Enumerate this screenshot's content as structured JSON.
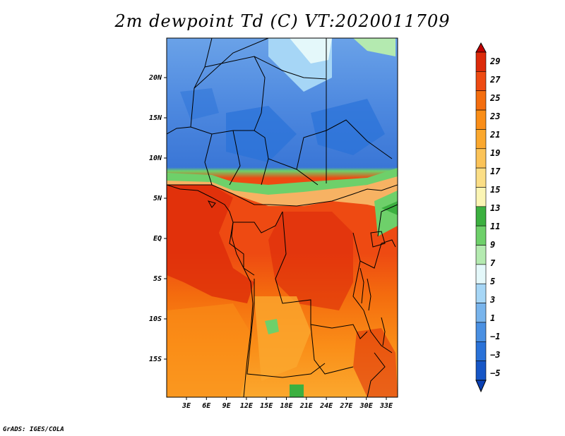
{
  "title": "2m dewpoint Td (C) VT:2020011709",
  "credit": "GrADS: IGES/COLA",
  "map": {
    "variable": "2m dewpoint Td",
    "units": "C",
    "valid_time": "2020011709",
    "lat_labels": [
      "20N",
      "15N",
      "10N",
      "5N",
      "EQ",
      "5S",
      "10S",
      "15S"
    ],
    "lon_labels": [
      "3E",
      "6E",
      "9E",
      "12E",
      "15E",
      "18E",
      "21E",
      "24E",
      "27E",
      "30E",
      "33E"
    ]
  },
  "colorbar": {
    "labels": [
      "29",
      "27",
      "25",
      "23",
      "21",
      "19",
      "17",
      "15",
      "13",
      "11",
      "9",
      "7",
      "5",
      "3",
      "1",
      "−1",
      "−3",
      "−5"
    ],
    "colors": [
      "#c00000",
      "#dc2a0a",
      "#ee4a12",
      "#f46d0e",
      "#fa8e18",
      "#fba82e",
      "#fbc358",
      "#fbde86",
      "#fbf5b4",
      "#3cb040",
      "#6ed06a",
      "#b4eab0",
      "#e4f8fa",
      "#a6d6f6",
      "#78b4ec",
      "#4a90e2",
      "#2a72d8",
      "#1656c6",
      "#0a40b4"
    ]
  }
}
